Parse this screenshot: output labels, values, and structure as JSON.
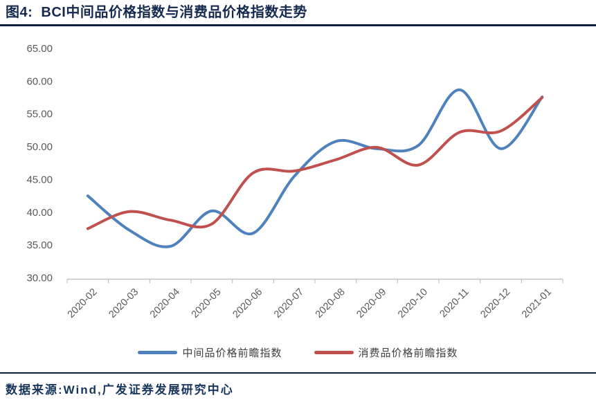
{
  "title": "图4:  BCI中间品价格指数与消费品价格指数走势",
  "source_note": "数据来源:Wind,广发证券发展研究中心",
  "colors": {
    "header_rule": "#0e1f3d",
    "title_text": "#152a4e",
    "footer_text": "#16355c",
    "axis_text": "#595959",
    "axis_line": "#c3c3c3",
    "series_blue": "#4f81bd",
    "series_red": "#c0504d",
    "legend_text": "#3f3f3f"
  },
  "chart_data": {
    "type": "line",
    "title": "BCI中间品价格指数与消费品价格指数走势",
    "x": [
      "2020-02",
      "2020-03",
      "2020-04",
      "2020-05",
      "2020-06",
      "2020-07",
      "2020-08",
      "2020-09",
      "2020-10",
      "2020-11",
      "2020-12",
      "2021-01"
    ],
    "series": [
      {
        "name": "中间品价格前瞻指数",
        "color": "#4f81bd",
        "values": [
          42.5,
          37.3,
          34.8,
          40.2,
          36.8,
          45.5,
          50.8,
          49.7,
          50.2,
          58.7,
          49.7,
          57.6
        ]
      },
      {
        "name": "消费品价格前瞻指数",
        "color": "#c0504d",
        "values": [
          37.5,
          40.1,
          38.8,
          38.2,
          46.0,
          46.3,
          48.0,
          49.9,
          47.2,
          52.2,
          52.4,
          57.5
        ]
      }
    ],
    "xlabel": "",
    "ylabel": "",
    "ylim": [
      30,
      65
    ],
    "yticks": [
      30,
      35,
      40,
      45,
      50,
      55,
      60,
      65
    ],
    "ytick_labels": [
      "30.00",
      "35.00",
      "40.00",
      "45.00",
      "50.00",
      "55.00",
      "60.00",
      "65.00"
    ],
    "grid": false,
    "smooth": true,
    "legend_position": "bottom",
    "x_tick_rotation_deg": -45
  }
}
